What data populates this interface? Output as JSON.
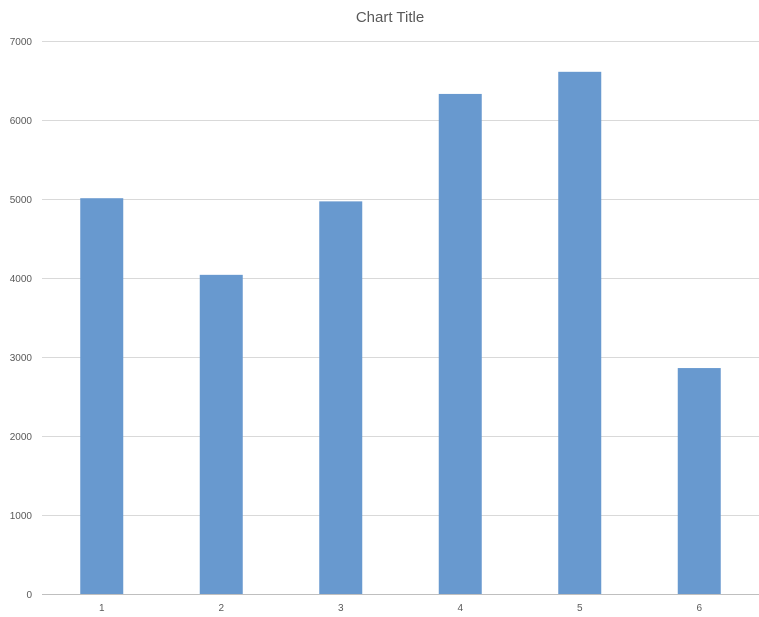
{
  "chart_data": {
    "type": "bar",
    "title": "Chart Title",
    "xlabel": "",
    "ylabel": "",
    "categories": [
      "1",
      "2",
      "3",
      "4",
      "5",
      "6"
    ],
    "values": [
      5010,
      4040,
      4970,
      6330,
      6610,
      2860
    ],
    "ylim": [
      0,
      7000
    ],
    "yticks": [
      0,
      1000,
      2000,
      3000,
      4000,
      5000,
      6000,
      7000
    ],
    "grid": true,
    "legend": "none",
    "bar_color": "#6899CF"
  }
}
